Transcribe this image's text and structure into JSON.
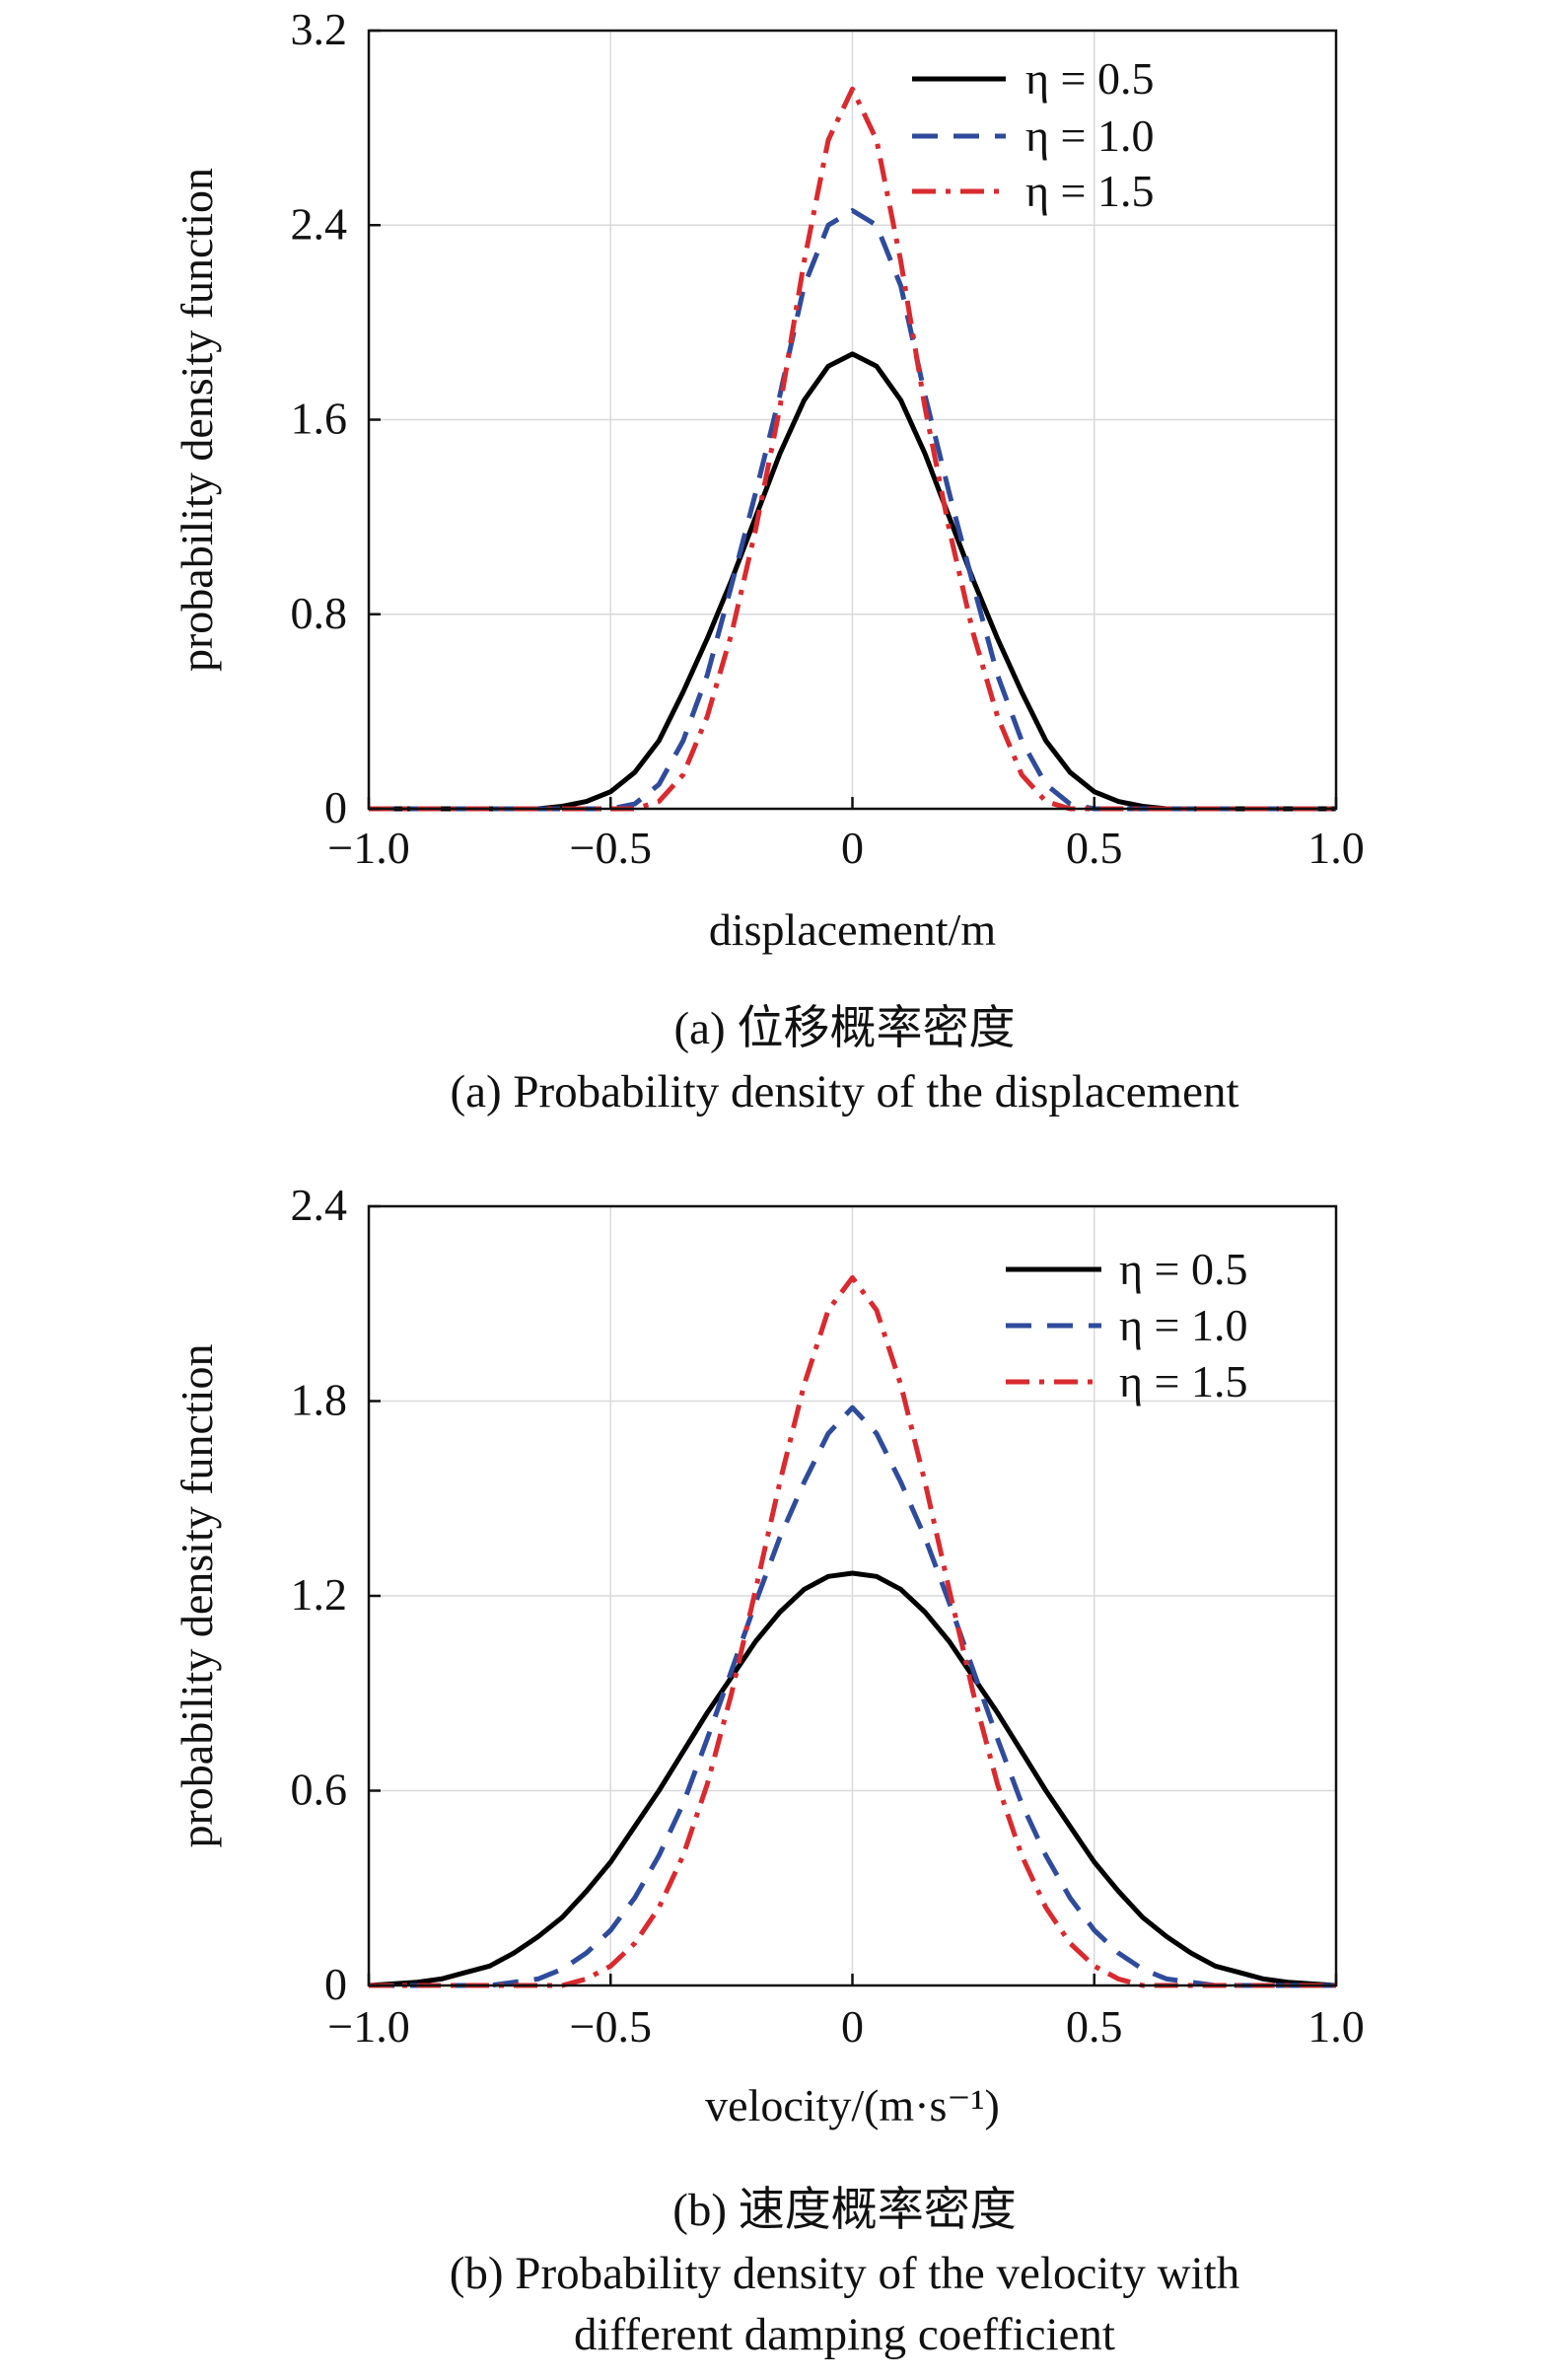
{
  "colors": {
    "eta_0_5": "#000000",
    "eta_1_0": "#2f4b9c",
    "eta_1_5": "#d92a2f",
    "grid": "#d9d9d9"
  },
  "chart_data": [
    {
      "type": "line",
      "xlabel": "displacement/m",
      "ylabel": "probability density function",
      "caption_cn": "(a) 位移概率密度",
      "caption_en": [
        "(a) Probability density of the displacement"
      ],
      "xlim": [
        -1.0,
        1.0
      ],
      "ylim": [
        0,
        3.2
      ],
      "xticks": [
        -1.0,
        -0.5,
        0,
        0.5,
        1.0
      ],
      "xtick_labels": [
        "−1.0",
        "−0.5",
        "0",
        "0.5",
        "1.0"
      ],
      "yticks": [
        0,
        0.8,
        1.6,
        2.4,
        3.2
      ],
      "ytick_labels": [
        "0",
        "0.8",
        "1.6",
        "2.4",
        "3.2"
      ],
      "grid": true,
      "legend_position": "top-right",
      "x": [
        -1.0,
        -0.95,
        -0.9,
        -0.85,
        -0.8,
        -0.75,
        -0.7,
        -0.65,
        -0.6,
        -0.55,
        -0.5,
        -0.45,
        -0.4,
        -0.35,
        -0.3,
        -0.25,
        -0.2,
        -0.15,
        -0.1,
        -0.05,
        0,
        0.05,
        0.1,
        0.15,
        0.2,
        0.25,
        0.3,
        0.35,
        0.4,
        0.45,
        0.5,
        0.55,
        0.6,
        0.65,
        0.7,
        0.75,
        0.8,
        0.85,
        0.9,
        0.95,
        1.0
      ],
      "series": [
        {
          "name": "η = 0.5",
          "style": "solid",
          "color_key": "eta_0_5",
          "values": [
            0,
            0,
            0,
            0,
            0,
            0,
            0,
            0,
            0.01,
            0.03,
            0.07,
            0.15,
            0.28,
            0.48,
            0.7,
            0.94,
            1.2,
            1.46,
            1.68,
            1.82,
            1.87,
            1.82,
            1.68,
            1.46,
            1.2,
            0.94,
            0.7,
            0.48,
            0.28,
            0.15,
            0.07,
            0.03,
            0.01,
            0,
            0,
            0,
            0,
            0,
            0,
            0,
            0
          ]
        },
        {
          "name": "η = 1.0",
          "style": "dashed",
          "color_key": "eta_1_0",
          "values": [
            0,
            0,
            0,
            0,
            0,
            0,
            0,
            0,
            0,
            0,
            0,
            0.02,
            0.1,
            0.28,
            0.55,
            0.92,
            1.3,
            1.7,
            2.15,
            2.4,
            2.46,
            2.4,
            2.15,
            1.7,
            1.3,
            0.92,
            0.55,
            0.28,
            0.1,
            0.02,
            0,
            0,
            0,
            0,
            0,
            0,
            0,
            0,
            0,
            0,
            0
          ]
        },
        {
          "name": "η = 1.5",
          "style": "dashdot",
          "color_key": "eta_1_5",
          "values": [
            0,
            0,
            0,
            0,
            0,
            0,
            0,
            0,
            0,
            0,
            0,
            0,
            0.03,
            0.14,
            0.38,
            0.72,
            1.15,
            1.65,
            2.25,
            2.75,
            2.96,
            2.75,
            2.25,
            1.65,
            1.15,
            0.72,
            0.38,
            0.14,
            0.03,
            0,
            0,
            0,
            0,
            0,
            0,
            0,
            0,
            0,
            0,
            0,
            0
          ]
        }
      ]
    },
    {
      "type": "line",
      "xlabel": "velocity/(m·s⁻¹)",
      "ylabel": "probability density function",
      "caption_cn": "(b) 速度概率密度",
      "caption_en": [
        "(b) Probability density of the velocity with",
        "different damping coefficient"
      ],
      "xlim": [
        -1.0,
        1.0
      ],
      "ylim": [
        0,
        2.4
      ],
      "xticks": [
        -1.0,
        -0.5,
        0,
        0.5,
        1.0
      ],
      "xtick_labels": [
        "−1.0",
        "−0.5",
        "0",
        "0.5",
        "1.0"
      ],
      "yticks": [
        0,
        0.6,
        1.2,
        1.8,
        2.4
      ],
      "ytick_labels": [
        "0",
        "0.6",
        "1.2",
        "1.8",
        "2.4"
      ],
      "grid": true,
      "legend_position": "top-right",
      "x": [
        -1.0,
        -0.95,
        -0.9,
        -0.85,
        -0.8,
        -0.75,
        -0.7,
        -0.65,
        -0.6,
        -0.55,
        -0.5,
        -0.45,
        -0.4,
        -0.35,
        -0.3,
        -0.25,
        -0.2,
        -0.15,
        -0.1,
        -0.05,
        0,
        0.05,
        0.1,
        0.15,
        0.2,
        0.25,
        0.3,
        0.35,
        0.4,
        0.45,
        0.5,
        0.55,
        0.6,
        0.65,
        0.7,
        0.75,
        0.8,
        0.85,
        0.9,
        0.95,
        1.0
      ],
      "series": [
        {
          "name": "η = 0.5",
          "style": "solid",
          "color_key": "eta_0_5",
          "values": [
            0,
            0.005,
            0.01,
            0.02,
            0.04,
            0.06,
            0.1,
            0.15,
            0.21,
            0.29,
            0.38,
            0.49,
            0.6,
            0.72,
            0.84,
            0.95,
            1.06,
            1.15,
            1.22,
            1.26,
            1.27,
            1.26,
            1.22,
            1.15,
            1.06,
            0.95,
            0.84,
            0.72,
            0.6,
            0.49,
            0.38,
            0.29,
            0.21,
            0.15,
            0.1,
            0.06,
            0.04,
            0.02,
            0.01,
            0.005,
            0
          ]
        },
        {
          "name": "η = 1.0",
          "style": "dashed",
          "color_key": "eta_1_0",
          "values": [
            0,
            0,
            0,
            0,
            0,
            0,
            0.01,
            0.02,
            0.05,
            0.1,
            0.17,
            0.27,
            0.4,
            0.56,
            0.76,
            0.97,
            1.18,
            1.38,
            1.55,
            1.7,
            1.78,
            1.7,
            1.55,
            1.38,
            1.18,
            0.97,
            0.76,
            0.56,
            0.4,
            0.27,
            0.17,
            0.1,
            0.05,
            0.02,
            0.01,
            0,
            0,
            0,
            0,
            0,
            0
          ]
        },
        {
          "name": "η = 1.5",
          "style": "dashdot",
          "color_key": "eta_1_5",
          "values": [
            0,
            0,
            0,
            0,
            0,
            0,
            0,
            0,
            0,
            0.02,
            0.06,
            0.13,
            0.24,
            0.4,
            0.62,
            0.9,
            1.22,
            1.55,
            1.85,
            2.08,
            2.18,
            2.08,
            1.85,
            1.55,
            1.22,
            0.9,
            0.62,
            0.4,
            0.24,
            0.13,
            0.06,
            0.02,
            0,
            0,
            0,
            0,
            0,
            0,
            0,
            0,
            0
          ]
        }
      ]
    }
  ]
}
